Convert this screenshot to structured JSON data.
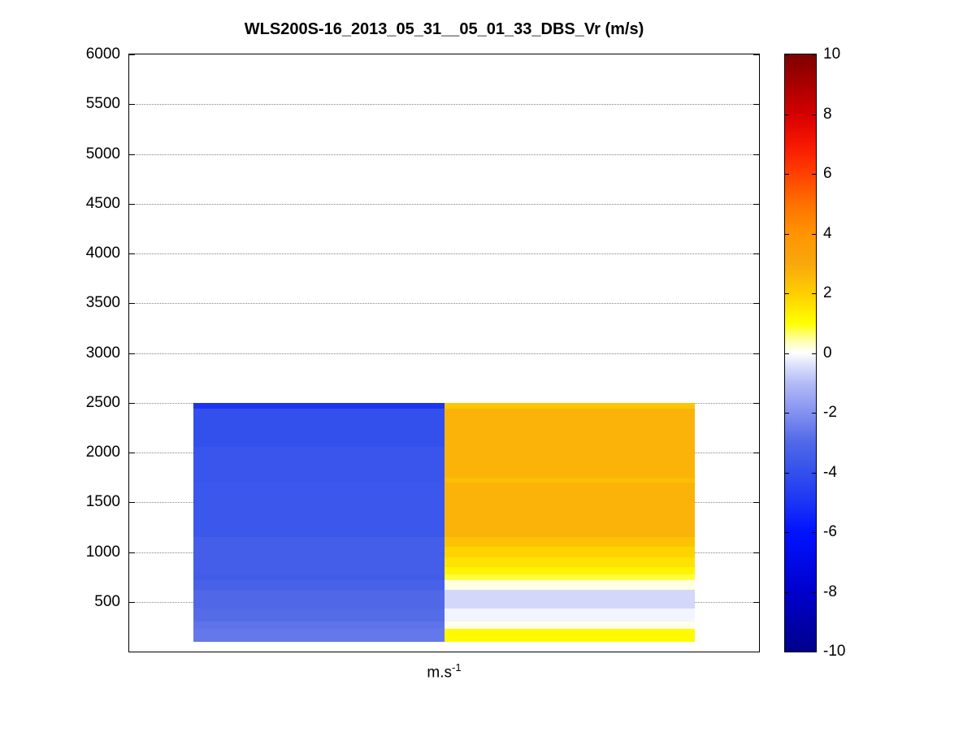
{
  "title": "WLS200S-16_2013_05_31__05_01_33_DBS_Vr (m/s)",
  "xlabel": {
    "base": "m.s",
    "exponent": "-1"
  },
  "chart_data": {
    "type": "heatmap",
    "title": "WLS200S-16_2013_05_31__05_01_33_DBS_Vr (m/s)",
    "xlabel": "m.s^-1",
    "ylabel": "",
    "ylim": [
      0,
      6000
    ],
    "y_ticks": [
      500,
      1000,
      1500,
      2000,
      2500,
      3000,
      3500,
      4000,
      4500,
      5000,
      5500,
      6000
    ],
    "grid": "dotted-horizontal",
    "legend": "colorbar-right",
    "value_unit": "m/s",
    "columns": 2,
    "colorbar": {
      "min": -10,
      "max": 10,
      "ticks": [
        10,
        8,
        6,
        4,
        2,
        0,
        -2,
        -4,
        -6,
        -8,
        -10
      ]
    },
    "rows": [
      {
        "alt_from": 2440,
        "alt_to": 2500,
        "values": [
          -5.0,
          2.2
        ]
      },
      {
        "alt_from": 2060,
        "alt_to": 2440,
        "values": [
          -4.0,
          2.7
        ]
      },
      {
        "alt_from": 1750,
        "alt_to": 2060,
        "values": [
          -3.8,
          2.7
        ]
      },
      {
        "alt_from": 1700,
        "alt_to": 1750,
        "values": [
          -3.8,
          2.4
        ]
      },
      {
        "alt_from": 1150,
        "alt_to": 1700,
        "values": [
          -3.7,
          2.7
        ]
      },
      {
        "alt_from": 1050,
        "alt_to": 1150,
        "values": [
          -3.4,
          2.3
        ]
      },
      {
        "alt_from": 950,
        "alt_to": 1050,
        "values": [
          -3.4,
          1.9
        ]
      },
      {
        "alt_from": 850,
        "alt_to": 950,
        "values": [
          -3.4,
          1.6
        ]
      },
      {
        "alt_from": 780,
        "alt_to": 850,
        "values": [
          -3.4,
          1.2
        ]
      },
      {
        "alt_from": 720,
        "alt_to": 780,
        "values": [
          -3.5,
          0.8
        ]
      },
      {
        "alt_from": 620,
        "alt_to": 720,
        "values": [
          -3.3,
          0.15
        ]
      },
      {
        "alt_from": 430,
        "alt_to": 620,
        "values": [
          -3.0,
          -0.55
        ]
      },
      {
        "alt_from": 300,
        "alt_to": 430,
        "values": [
          -2.9,
          -0.15
        ]
      },
      {
        "alt_from": 230,
        "alt_to": 300,
        "values": [
          -2.7,
          0.1
        ]
      },
      {
        "alt_from": 100,
        "alt_to": 230,
        "values": [
          -2.6,
          1.1
        ]
      }
    ],
    "colormap": [
      {
        "v": -10,
        "color": "#00008b"
      },
      {
        "v": -8,
        "color": "#0000cd"
      },
      {
        "v": -6,
        "color": "#0013ff"
      },
      {
        "v": -5,
        "color": "#1c34f4"
      },
      {
        "v": -4,
        "color": "#3350ec"
      },
      {
        "v": -3,
        "color": "#5068e8"
      },
      {
        "v": -2,
        "color": "#8391f0"
      },
      {
        "v": -1,
        "color": "#b4bcf6"
      },
      {
        "v": -0.4,
        "color": "#dde1fb"
      },
      {
        "v": 0,
        "color": "#ffffff"
      },
      {
        "v": 0.4,
        "color": "#ffffb0"
      },
      {
        "v": 1,
        "color": "#ffff00"
      },
      {
        "v": 2,
        "color": "#ffce00"
      },
      {
        "v": 3,
        "color": "#f9a70d"
      },
      {
        "v": 4,
        "color": "#ff9400"
      },
      {
        "v": 5,
        "color": "#ff7000"
      },
      {
        "v": 6,
        "color": "#ff4000"
      },
      {
        "v": 7,
        "color": "#f81600"
      },
      {
        "v": 8,
        "color": "#d40000"
      },
      {
        "v": 9,
        "color": "#a80000"
      },
      {
        "v": 10,
        "color": "#7f0000"
      }
    ]
  }
}
